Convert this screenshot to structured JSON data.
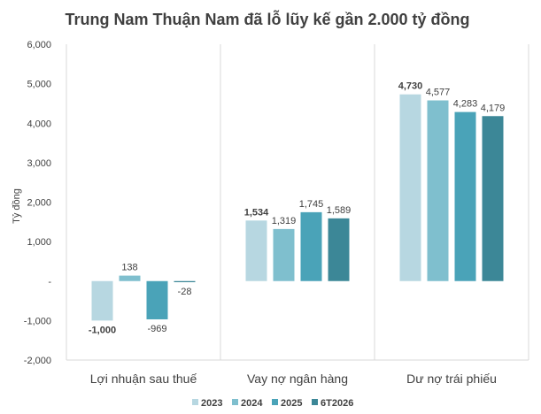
{
  "chart_data": {
    "type": "bar",
    "title": "Trung Nam Thuận Nam đã lỗ lũy kế gần 2.000 tỷ đồng",
    "ylabel": "Tỷ đồng",
    "xlabel": "",
    "ylim": [
      -2000,
      6000
    ],
    "yticks": [
      -2000,
      -1000,
      0,
      1000,
      2000,
      3000,
      4000,
      5000,
      6000
    ],
    "ytick_labels": [
      "-2,000",
      "-1,000",
      "-",
      "1,000",
      "2,000",
      "3,000",
      "4,000",
      "5,000",
      "6,000"
    ],
    "categories": [
      "Lợi nhuận sau thuế",
      "Vay nợ ngân hàng",
      "Dư nợ trái phiếu"
    ],
    "series": [
      {
        "name": "2023",
        "color": "#b7d7e1",
        "values": [
          -1000,
          1534,
          4730
        ],
        "labels": [
          "-1,000",
          "1,534",
          "4,730"
        ],
        "bold": [
          true,
          true,
          true
        ]
      },
      {
        "name": "2024",
        "color": "#7fbfce",
        "values": [
          138,
          1319,
          4577
        ],
        "labels": [
          "138",
          "1,319",
          "4,577"
        ],
        "bold": [
          false,
          false,
          false
        ]
      },
      {
        "name": "2025",
        "color": "#4aa3b8",
        "values": [
          -969,
          1745,
          4283
        ],
        "labels": [
          "-969",
          "1,745",
          "4,283"
        ],
        "bold": [
          false,
          false,
          false
        ]
      },
      {
        "name": "6T2026",
        "color": "#3c8797",
        "values": [
          -28,
          1589,
          4179
        ],
        "labels": [
          "-28",
          "1,589",
          "4,179"
        ],
        "bold": [
          false,
          false,
          false
        ]
      }
    ],
    "grid": "vertical-separators",
    "legend": "bottom-right"
  }
}
